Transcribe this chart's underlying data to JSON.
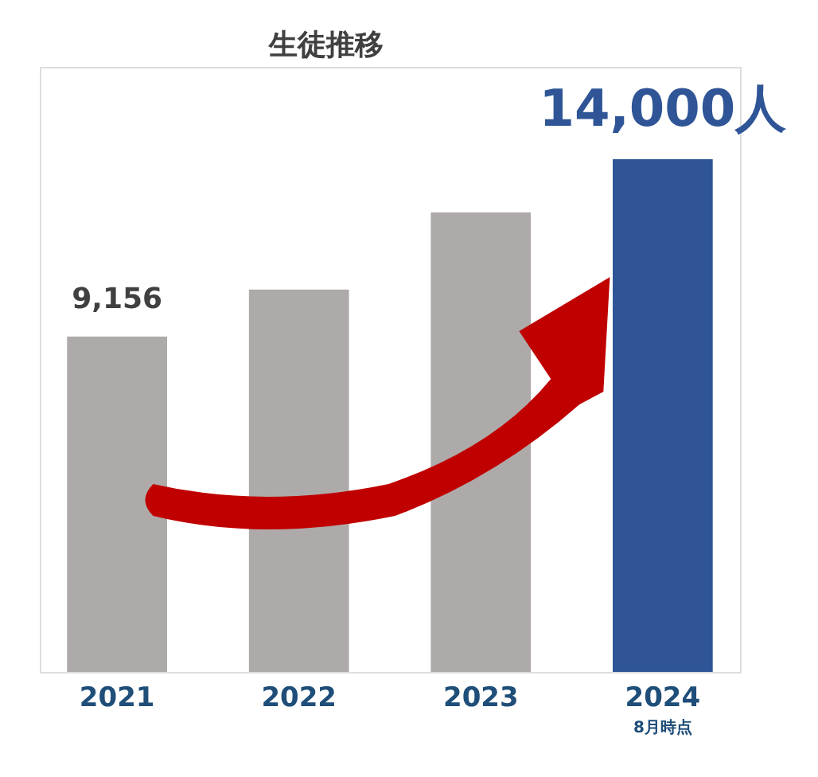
{
  "chart_data": {
    "type": "bar",
    "title": "生徒推移",
    "categories": [
      "2021",
      "2022",
      "2023",
      "2024"
    ],
    "values": [
      9156,
      10440,
      12550,
      14000
    ],
    "colors": [
      "#aeaaa9",
      "#aeaaa9",
      "#aeaaa9",
      "#2f5597"
    ],
    "value_labels": [
      "9,156",
      null,
      null,
      "14,000人"
    ],
    "annotations": [
      "8月時点"
    ]
  }
}
